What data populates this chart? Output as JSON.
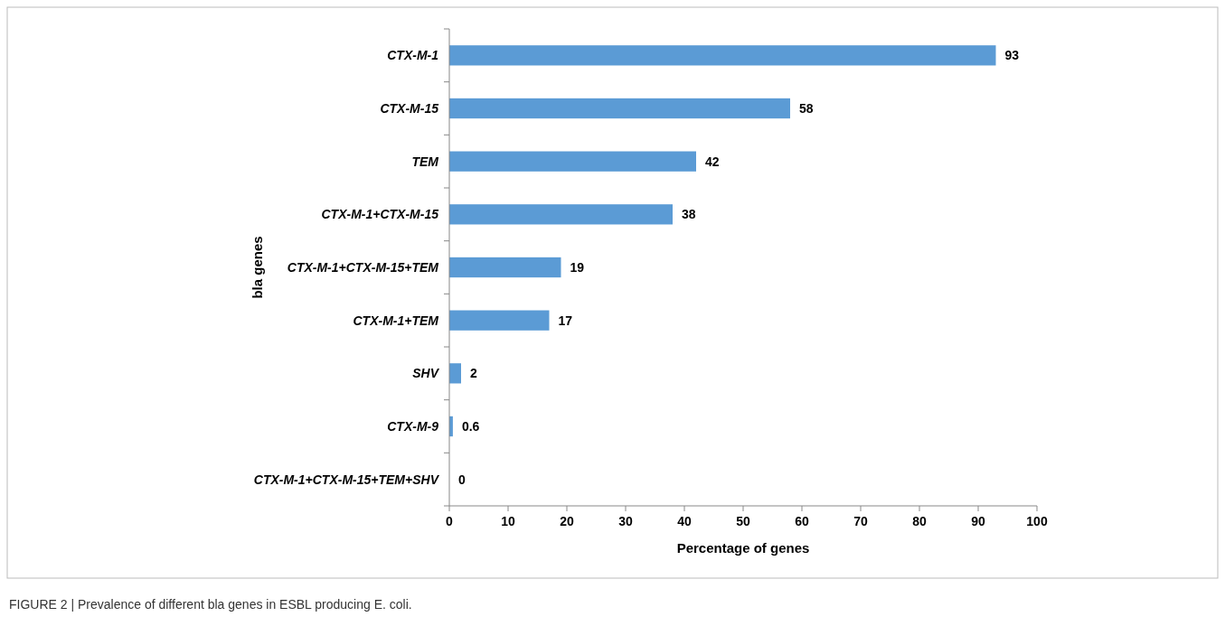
{
  "chart_data": {
    "type": "bar",
    "orientation": "horizontal",
    "xlabel": "Percentage of genes",
    "ylabel": "bla genes",
    "categories": [
      "CTX-M-1",
      "CTX-M-15",
      "TEM",
      "CTX-M-1+CTX-M-15",
      "CTX-M-1+CTX-M-15+TEM",
      "CTX-M-1+TEM",
      "SHV",
      "CTX-M-9",
      "CTX-M-1+CTX-M-15+TEM+SHV"
    ],
    "values": [
      93,
      58,
      42,
      38,
      19,
      17,
      2,
      0.6,
      0
    ],
    "color": "#5b9bd5",
    "data_labels": true,
    "xlim": [
      0,
      100
    ],
    "xticks": [
      0,
      10,
      20,
      30,
      40,
      50,
      60,
      70,
      80,
      90,
      100
    ],
    "annotations": [
      "FIGURE 2 | Prevalence of different bla genes in ESBL producing E. coli."
    ]
  }
}
